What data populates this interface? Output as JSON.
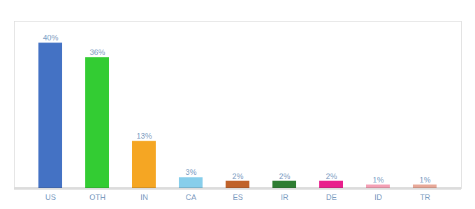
{
  "chart_data": {
    "type": "bar",
    "categories": [
      "US",
      "OTH",
      "IN",
      "CA",
      "ES",
      "IR",
      "DE",
      "ID",
      "TR"
    ],
    "values": [
      40,
      36,
      13,
      3,
      2,
      2,
      2,
      1,
      1
    ],
    "value_labels": [
      "40%",
      "36%",
      "13%",
      "3%",
      "2%",
      "2%",
      "2%",
      "1%",
      "1%"
    ],
    "colors": [
      "#4472c4",
      "#33cc33",
      "#f5a623",
      "#87ceeb",
      "#c0622a",
      "#2e7d32",
      "#e91e8c",
      "#f4a0b5",
      "#e8a898"
    ],
    "ylim": [
      0,
      46
    ],
    "data_labels": true,
    "tick_labels": "x",
    "grid": false
  }
}
